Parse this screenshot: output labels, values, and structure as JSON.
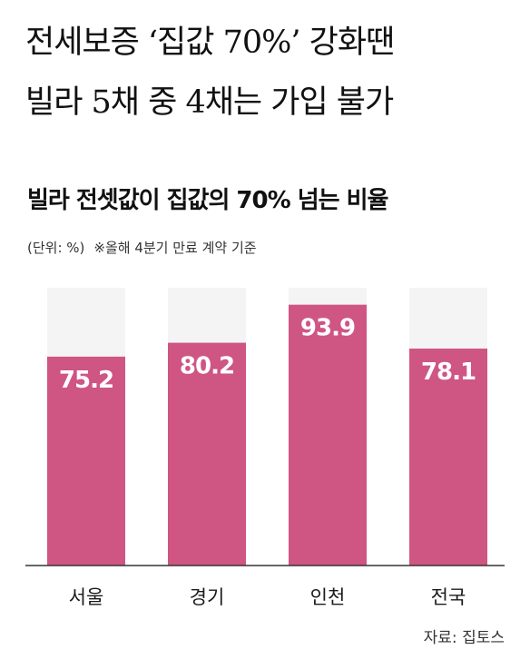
{
  "headline": {
    "line1": "전세보증 ‘집값 70%’ 강화땐",
    "line2": "빌라 5채 중 4채는 가입 불가"
  },
  "subtitle": {
    "unit": "(단위: %)",
    "note": "※올해 4분기 만료 계약 기준"
  },
  "source": "자료: 집토스",
  "colors": {
    "bar": "#cf5583",
    "track": "#f4f4f4",
    "label": "#ffffff"
  },
  "chart_data": {
    "type": "bar",
    "title": "빌라 전셋값이 집값의 70% 넘는 비율",
    "categories": [
      "서울",
      "경기",
      "인천",
      "전국"
    ],
    "values": [
      75.2,
      80.2,
      93.9,
      78.1
    ],
    "value_labels": [
      "75.2",
      "80.2",
      "93.9",
      "78.1"
    ],
    "xlabel": "",
    "ylabel": "",
    "ylim": [
      0,
      100
    ],
    "grid": false,
    "legend": "none"
  }
}
